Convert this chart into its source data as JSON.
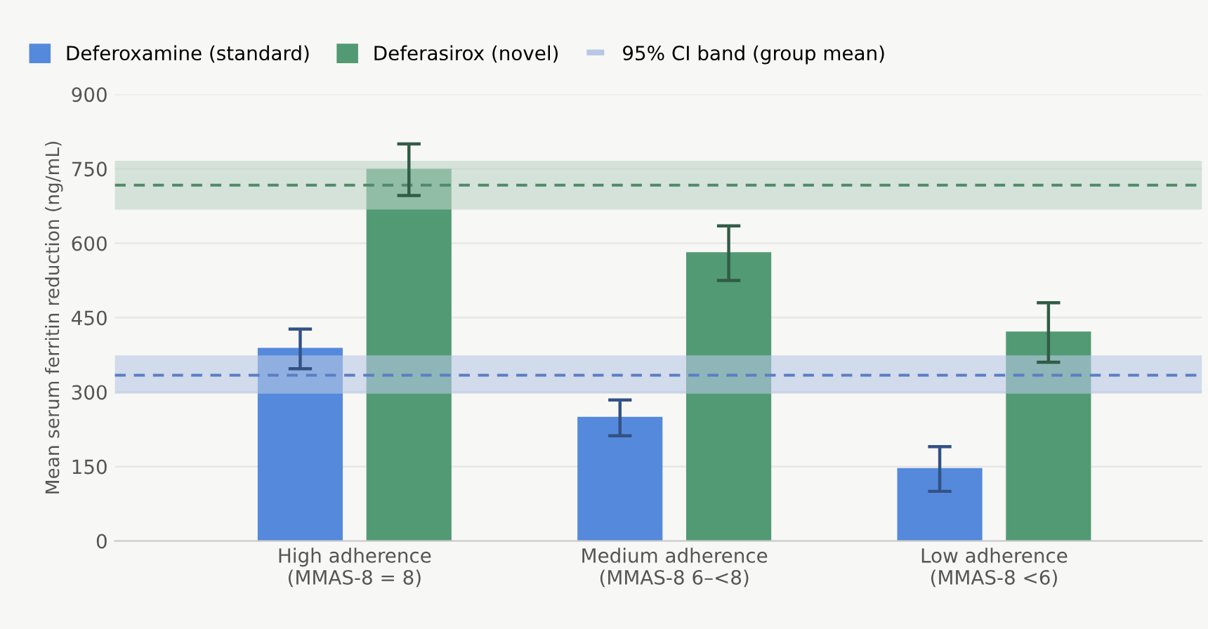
{
  "chart_data": {
    "type": "bar",
    "ylabel": "Mean serum ferritin reduction (ng/mL)",
    "categories": [
      "High adherence\n(MMAS-8 = 8)",
      "Medium adherence\n(MMAS-8 6–<8)",
      "Low adherence\n(MMAS-8 <6)"
    ],
    "series": [
      {
        "name": "Deferoxamine (standard)",
        "color": "#5589dc",
        "values": [
          387,
          248,
          145
        ],
        "errors": [
          40,
          36,
          45
        ]
      },
      {
        "name": "Deferasirox (novel)",
        "color": "#529a73",
        "values": [
          748,
          580,
          420
        ],
        "errors": [
          52,
          55,
          60
        ]
      }
    ],
    "bands": [
      {
        "axis": "y",
        "from": 297,
        "to": 374,
        "color": "#b8c8e4",
        "label": "95% CI band (group mean)"
      },
      {
        "axis": "y",
        "from": 668,
        "to": 766,
        "color": "#bcd4c6"
      }
    ],
    "ref_lines": [
      {
        "axis": "y",
        "value": 334,
        "color": "#5a7ec4",
        "line_style": "dashed"
      },
      {
        "axis": "y",
        "value": 717,
        "color": "#4f8a6a",
        "line_style": "dashed"
      }
    ],
    "ylim": [
      0,
      900
    ],
    "yticks": [
      0,
      150,
      300,
      450,
      600,
      750,
      900
    ],
    "grid": "y",
    "legend": "top left"
  }
}
